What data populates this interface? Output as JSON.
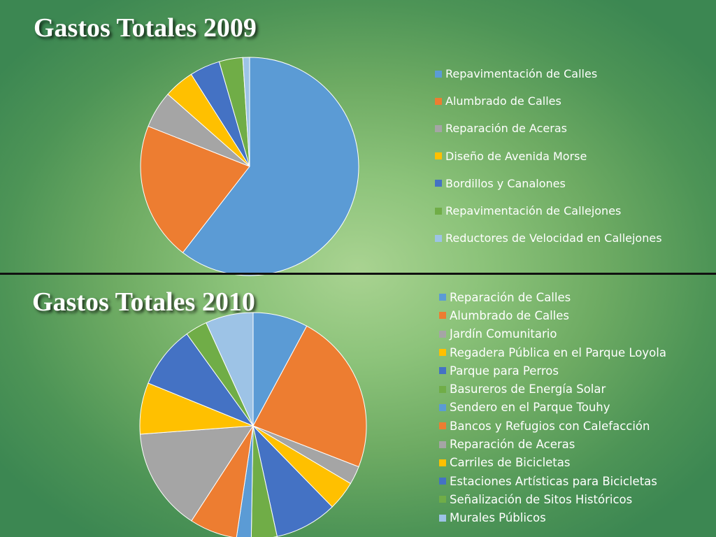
{
  "chart_data": [
    {
      "type": "pie",
      "title": "Gastos Totales 2009",
      "legend_position": "right",
      "categories": [
        "Repavimentación de Calles",
        "Alumbrado de Calles",
        "Reparación de Aceras",
        "Diseño de Avenida Morse",
        "Bordillos y Canalones",
        "Repavimentación de Callejones",
        "Reductores de Velocidad en Callejones"
      ],
      "values": [
        60.5,
        20.5,
        5.5,
        4.5,
        4.5,
        3.5,
        1.0
      ],
      "colors": [
        "#5b9bd5",
        "#ed7d31",
        "#a5a5a5",
        "#ffc000",
        "#4472c4",
        "#70ad47",
        "#9dc3e6"
      ]
    },
    {
      "type": "pie",
      "title": "Gastos Totales 2010",
      "legend_position": "right",
      "categories": [
        "Reparación de Calles",
        "Alumbrado de Calles",
        "Jardín Comunitario",
        "Regadera Pública en el Parque Loyola",
        "Parque para Perros",
        "Basureros de Energía Solar",
        "Sendero en el Parque Touhy",
        "Bancos y Refugios con Calefacción",
        "Reparación de Aceras",
        "Carriles de Bicicletas",
        "Estaciones Artísticas para Bicicletas",
        "Señalización de Sitos Históricos",
        "Murales Públicos"
      ],
      "values": [
        7.5,
        22.0,
        2.5,
        4.0,
        8.5,
        3.5,
        2.0,
        6.5,
        14.0,
        7.0,
        8.5,
        3.0,
        6.5
      ],
      "colors": [
        "#5b9bd5",
        "#ed7d31",
        "#a5a5a5",
        "#ffc000",
        "#4472c4",
        "#70ad47",
        "#5b9bd5",
        "#ed7d31",
        "#a5a5a5",
        "#ffc000",
        "#4472c4",
        "#70ad47",
        "#9dc3e6"
      ]
    }
  ]
}
